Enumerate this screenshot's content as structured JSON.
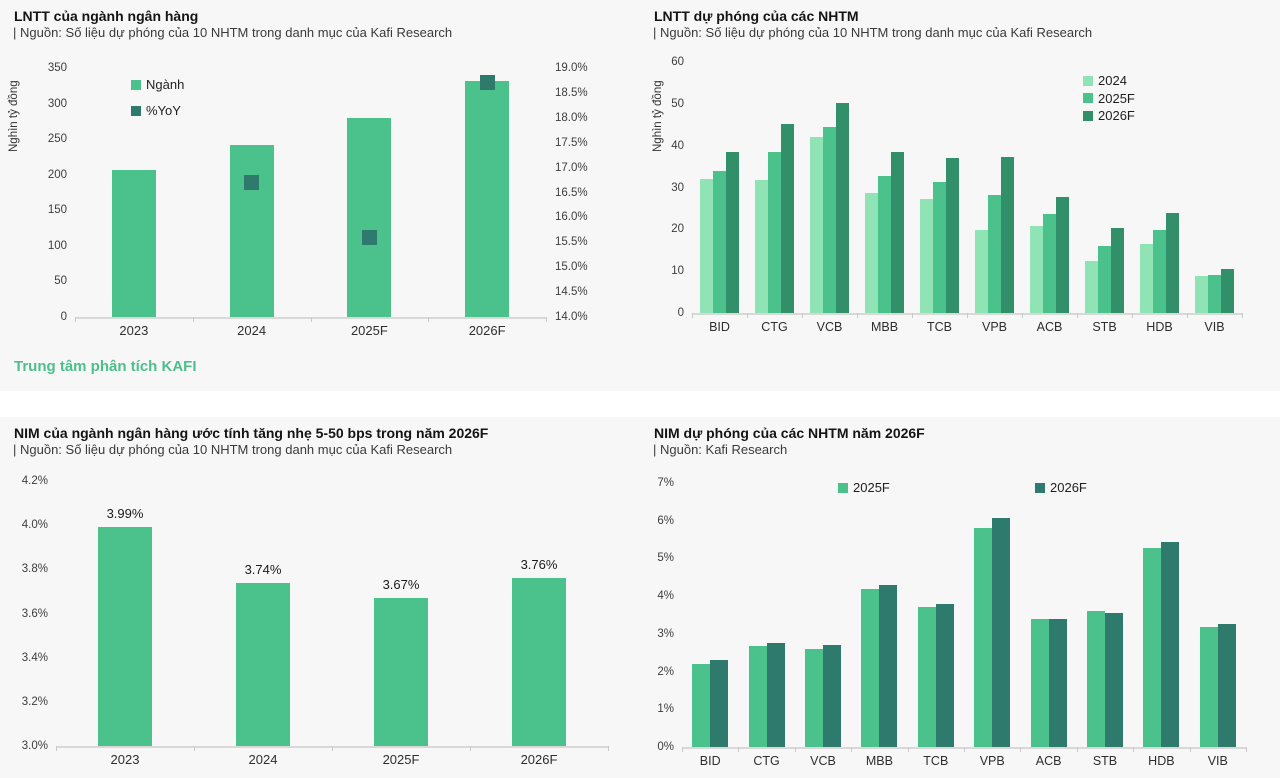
{
  "footer": {
    "text": "Trung tâm phân tích KAFI"
  },
  "colors": {
    "panel_bg": "#f7f7f7",
    "divider": "#ffffff",
    "green_medium": "#4bc18c",
    "green_light": "#90e3b4",
    "green_dark": "#319069",
    "teal_dark": "#2e7a6c",
    "kafi_text": "#4dbf8c"
  },
  "chart_data": [
    {
      "type": "bar",
      "title": "LNTT của ngành ngân hàng",
      "subtitle": "| Nguồn: Số liệu dự phóng của 10 NHTM trong danh mục của Kafi Research",
      "ylabel": "Nghìn tỷ đồng",
      "categories": [
        "2023",
        "2024",
        "2025F",
        "2026F"
      ],
      "series": [
        {
          "name": "Ngành",
          "color": "#4bc18c",
          "values": [
            207,
            242,
            280,
            332
          ]
        }
      ],
      "marker_series": {
        "name": "%YoY",
        "color": "#2e7a6c",
        "axis": "y2",
        "values": [
          null,
          16.7,
          15.6,
          18.7
        ]
      },
      "ylim": [
        0,
        350
      ],
      "yticks": [
        "350",
        "300",
        "250",
        "200",
        "150",
        "100",
        "50",
        "0"
      ],
      "y2lim": [
        14,
        19
      ],
      "y2ticks": [
        "19.0%",
        "18.5%",
        "18.0%",
        "17.5%",
        "17.0%",
        "16.5%",
        "16.0%",
        "15.5%",
        "15.0%",
        "14.5%",
        "14.0%"
      ],
      "grid": false,
      "legend": {
        "orientation": "vertical",
        "position": "inside-top-left",
        "items": [
          {
            "label": "Ngành",
            "color": "#4bc18c"
          },
          {
            "label": "%YoY",
            "color": "#2e7a6c"
          }
        ]
      }
    },
    {
      "type": "bar",
      "title": "LNTT dự phóng của các NHTM",
      "subtitle": "| Nguồn: Số liệu dự phóng của 10 NHTM trong danh mục của Kafi Research",
      "ylabel": "Nghìn tỷ đồng",
      "categories": [
        "BID",
        "CTG",
        "VCB",
        "MBB",
        "TCB",
        "VPB",
        "ACB",
        "STB",
        "HDB",
        "VIB"
      ],
      "series": [
        {
          "name": "2024",
          "color": "#90e3b4",
          "values": [
            32,
            31.8,
            42,
            28.8,
            27.3,
            19.8,
            20.8,
            12.4,
            16.5,
            8.8
          ]
        },
        {
          "name": "2025F",
          "color": "#4bc18c",
          "values": [
            34,
            38.5,
            44.5,
            32.8,
            31.3,
            28.3,
            23.6,
            15.9,
            19.8,
            9.2
          ]
        },
        {
          "name": "2026F",
          "color": "#319069",
          "values": [
            38.5,
            45.2,
            50.2,
            38.5,
            37,
            37.4,
            27.7,
            20.2,
            24,
            10.5
          ]
        }
      ],
      "ylim": [
        0,
        60
      ],
      "yticks": [
        "60",
        "50",
        "40",
        "30",
        "20",
        "10",
        "0"
      ],
      "grid": false,
      "legend": {
        "orientation": "vertical",
        "position": "inside-top-right",
        "items": [
          {
            "label": "2024",
            "color": "#90e3b4"
          },
          {
            "label": "2025F",
            "color": "#4bc18c"
          },
          {
            "label": "2026F",
            "color": "#319069"
          }
        ]
      }
    },
    {
      "type": "bar",
      "title": "NIM của ngành ngân hàng ước tính tăng nhẹ 5-50 bps trong năm 2026F",
      "subtitle": "| Nguồn: Số liệu dự phóng của 10 NHTM trong danh mục của Kafi Research",
      "ylabel": "",
      "categories": [
        "2023",
        "2024",
        "2025F",
        "2026F"
      ],
      "series": [
        {
          "name": "NIM",
          "color": "#4bc18c",
          "values": [
            3.99,
            3.74,
            3.67,
            3.76
          ]
        }
      ],
      "data_labels": [
        "3.99%",
        "3.74%",
        "3.67%",
        "3.76%"
      ],
      "ylim": [
        3.0,
        4.2
      ],
      "yticks": [
        "4.2%",
        "4.0%",
        "3.8%",
        "3.6%",
        "3.4%",
        "3.2%",
        "3.0%"
      ],
      "grid": false
    },
    {
      "type": "bar",
      "title": "NIM dự phóng của các NHTM năm 2026F",
      "subtitle": "| Nguồn: Kafi Research",
      "ylabel": "",
      "categories": [
        "BID",
        "CTG",
        "VCB",
        "MBB",
        "TCB",
        "VPB",
        "ACB",
        "STB",
        "HDB",
        "VIB"
      ],
      "series": [
        {
          "name": "2025F",
          "color": "#4bc18c",
          "values": [
            2.2,
            2.68,
            2.6,
            4.2,
            3.7,
            5.8,
            3.4,
            3.6,
            5.28,
            3.17
          ]
        },
        {
          "name": "2026F",
          "color": "#2e7a6c",
          "values": [
            2.3,
            2.75,
            2.7,
            4.3,
            3.78,
            6.08,
            3.4,
            3.55,
            5.43,
            3.26
          ]
        }
      ],
      "ylim": [
        0,
        7
      ],
      "yticks": [
        "7%",
        "6%",
        "5%",
        "4%",
        "3%",
        "2%",
        "1%",
        "0%"
      ],
      "grid": false,
      "legend": {
        "orientation": "horizontal",
        "position": "inside-top-center",
        "items": [
          {
            "label": "2025F",
            "color": "#4bc18c"
          },
          {
            "label": "2026F",
            "color": "#2e7a6c"
          }
        ]
      }
    }
  ]
}
